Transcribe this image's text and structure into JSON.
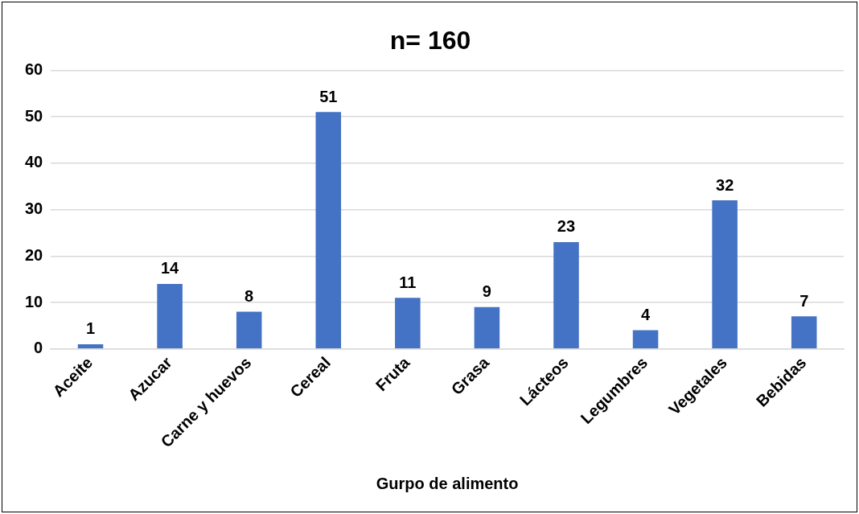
{
  "chart_data": {
    "type": "bar",
    "title": "n= 160",
    "xlabel": "Gurpo de alimento",
    "categories": [
      "Aceite",
      "Azucar",
      "Carne y huevos",
      "Cereal",
      "Fruta",
      "Grasa",
      "Lácteos",
      "Legumbres",
      "Vegetales",
      "Bebidas"
    ],
    "values": [
      1,
      14,
      8,
      51,
      11,
      9,
      23,
      4,
      32,
      7
    ],
    "color": "#4472c4",
    "ylim": [
      0,
      60
    ],
    "yticks": [
      0,
      10,
      20,
      30,
      40,
      50,
      60
    ],
    "grid": "y",
    "data_labels": true
  }
}
